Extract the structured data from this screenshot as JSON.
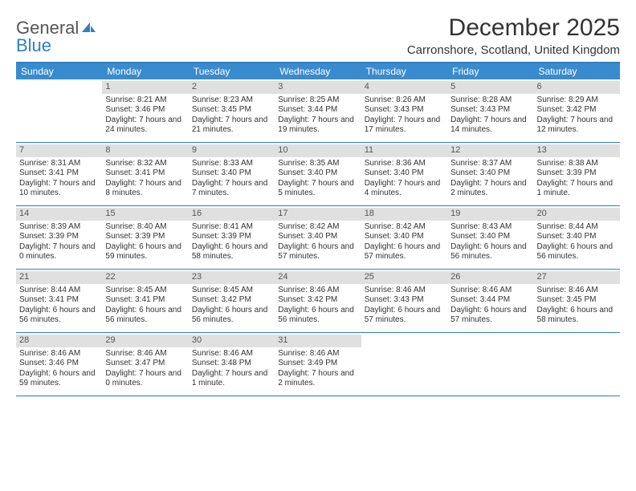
{
  "logo": {
    "top": "General",
    "bottom": "Blue"
  },
  "title": "December 2025",
  "subtitle": "Carronshore, Scotland, United Kingdom",
  "colors": {
    "header_bar": "#3a8bce",
    "header_border": "#2f7fc1",
    "daynum_bg": "#e0e0e0",
    "text": "#333333",
    "logo_gray": "#555555",
    "logo_blue": "#2f7fc1",
    "background": "#ffffff"
  },
  "day_headers": [
    "Sunday",
    "Monday",
    "Tuesday",
    "Wednesday",
    "Thursday",
    "Friday",
    "Saturday"
  ],
  "weeks": [
    [
      {
        "n": "",
        "sr": "",
        "ss": "",
        "dl": ""
      },
      {
        "n": "1",
        "sr": "Sunrise: 8:21 AM",
        "ss": "Sunset: 3:46 PM",
        "dl": "Daylight: 7 hours and 24 minutes."
      },
      {
        "n": "2",
        "sr": "Sunrise: 8:23 AM",
        "ss": "Sunset: 3:45 PM",
        "dl": "Daylight: 7 hours and 21 minutes."
      },
      {
        "n": "3",
        "sr": "Sunrise: 8:25 AM",
        "ss": "Sunset: 3:44 PM",
        "dl": "Daylight: 7 hours and 19 minutes."
      },
      {
        "n": "4",
        "sr": "Sunrise: 8:26 AM",
        "ss": "Sunset: 3:43 PM",
        "dl": "Daylight: 7 hours and 17 minutes."
      },
      {
        "n": "5",
        "sr": "Sunrise: 8:28 AM",
        "ss": "Sunset: 3:43 PM",
        "dl": "Daylight: 7 hours and 14 minutes."
      },
      {
        "n": "6",
        "sr": "Sunrise: 8:29 AM",
        "ss": "Sunset: 3:42 PM",
        "dl": "Daylight: 7 hours and 12 minutes."
      }
    ],
    [
      {
        "n": "7",
        "sr": "Sunrise: 8:31 AM",
        "ss": "Sunset: 3:41 PM",
        "dl": "Daylight: 7 hours and 10 minutes."
      },
      {
        "n": "8",
        "sr": "Sunrise: 8:32 AM",
        "ss": "Sunset: 3:41 PM",
        "dl": "Daylight: 7 hours and 8 minutes."
      },
      {
        "n": "9",
        "sr": "Sunrise: 8:33 AM",
        "ss": "Sunset: 3:40 PM",
        "dl": "Daylight: 7 hours and 7 minutes."
      },
      {
        "n": "10",
        "sr": "Sunrise: 8:35 AM",
        "ss": "Sunset: 3:40 PM",
        "dl": "Daylight: 7 hours and 5 minutes."
      },
      {
        "n": "11",
        "sr": "Sunrise: 8:36 AM",
        "ss": "Sunset: 3:40 PM",
        "dl": "Daylight: 7 hours and 4 minutes."
      },
      {
        "n": "12",
        "sr": "Sunrise: 8:37 AM",
        "ss": "Sunset: 3:40 PM",
        "dl": "Daylight: 7 hours and 2 minutes."
      },
      {
        "n": "13",
        "sr": "Sunrise: 8:38 AM",
        "ss": "Sunset: 3:39 PM",
        "dl": "Daylight: 7 hours and 1 minute."
      }
    ],
    [
      {
        "n": "14",
        "sr": "Sunrise: 8:39 AM",
        "ss": "Sunset: 3:39 PM",
        "dl": "Daylight: 7 hours and 0 minutes."
      },
      {
        "n": "15",
        "sr": "Sunrise: 8:40 AM",
        "ss": "Sunset: 3:39 PM",
        "dl": "Daylight: 6 hours and 59 minutes."
      },
      {
        "n": "16",
        "sr": "Sunrise: 8:41 AM",
        "ss": "Sunset: 3:39 PM",
        "dl": "Daylight: 6 hours and 58 minutes."
      },
      {
        "n": "17",
        "sr": "Sunrise: 8:42 AM",
        "ss": "Sunset: 3:40 PM",
        "dl": "Daylight: 6 hours and 57 minutes."
      },
      {
        "n": "18",
        "sr": "Sunrise: 8:42 AM",
        "ss": "Sunset: 3:40 PM",
        "dl": "Daylight: 6 hours and 57 minutes."
      },
      {
        "n": "19",
        "sr": "Sunrise: 8:43 AM",
        "ss": "Sunset: 3:40 PM",
        "dl": "Daylight: 6 hours and 56 minutes."
      },
      {
        "n": "20",
        "sr": "Sunrise: 8:44 AM",
        "ss": "Sunset: 3:40 PM",
        "dl": "Daylight: 6 hours and 56 minutes."
      }
    ],
    [
      {
        "n": "21",
        "sr": "Sunrise: 8:44 AM",
        "ss": "Sunset: 3:41 PM",
        "dl": "Daylight: 6 hours and 56 minutes."
      },
      {
        "n": "22",
        "sr": "Sunrise: 8:45 AM",
        "ss": "Sunset: 3:41 PM",
        "dl": "Daylight: 6 hours and 56 minutes."
      },
      {
        "n": "23",
        "sr": "Sunrise: 8:45 AM",
        "ss": "Sunset: 3:42 PM",
        "dl": "Daylight: 6 hours and 56 minutes."
      },
      {
        "n": "24",
        "sr": "Sunrise: 8:46 AM",
        "ss": "Sunset: 3:42 PM",
        "dl": "Daylight: 6 hours and 56 minutes."
      },
      {
        "n": "25",
        "sr": "Sunrise: 8:46 AM",
        "ss": "Sunset: 3:43 PM",
        "dl": "Daylight: 6 hours and 57 minutes."
      },
      {
        "n": "26",
        "sr": "Sunrise: 8:46 AM",
        "ss": "Sunset: 3:44 PM",
        "dl": "Daylight: 6 hours and 57 minutes."
      },
      {
        "n": "27",
        "sr": "Sunrise: 8:46 AM",
        "ss": "Sunset: 3:45 PM",
        "dl": "Daylight: 6 hours and 58 minutes."
      }
    ],
    [
      {
        "n": "28",
        "sr": "Sunrise: 8:46 AM",
        "ss": "Sunset: 3:46 PM",
        "dl": "Daylight: 6 hours and 59 minutes."
      },
      {
        "n": "29",
        "sr": "Sunrise: 8:46 AM",
        "ss": "Sunset: 3:47 PM",
        "dl": "Daylight: 7 hours and 0 minutes."
      },
      {
        "n": "30",
        "sr": "Sunrise: 8:46 AM",
        "ss": "Sunset: 3:48 PM",
        "dl": "Daylight: 7 hours and 1 minute."
      },
      {
        "n": "31",
        "sr": "Sunrise: 8:46 AM",
        "ss": "Sunset: 3:49 PM",
        "dl": "Daylight: 7 hours and 2 minutes."
      },
      {
        "n": "",
        "sr": "",
        "ss": "",
        "dl": ""
      },
      {
        "n": "",
        "sr": "",
        "ss": "",
        "dl": ""
      },
      {
        "n": "",
        "sr": "",
        "ss": "",
        "dl": ""
      }
    ]
  ]
}
